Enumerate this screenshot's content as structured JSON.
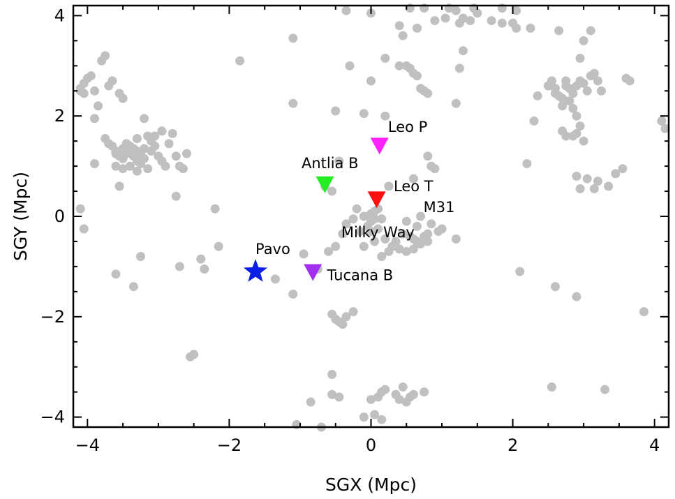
{
  "chart_data": {
    "type": "scatter",
    "title": "",
    "xlabel": "SGX (Mpc)",
    "ylabel": "SGY (Mpc)",
    "xlim": [
      -4.2,
      4.2
    ],
    "ylim": [
      -4.2,
      4.2
    ],
    "x_ticks": [
      -4,
      -2,
      0,
      2,
      4
    ],
    "y_ticks": [
      -4,
      -2,
      0,
      2,
      4
    ],
    "grid": false,
    "colors": {
      "background_points": "#c0c0c0",
      "pavo": "#0a1ee6",
      "antlia_b": "#22ee22",
      "leo_p": "#ff22ff",
      "leo_t": "#ff1010",
      "tucana_b": "#a030ee"
    },
    "background_points": [
      [
        -4.1,
        2.5
      ],
      [
        -4.05,
        2.65
      ],
      [
        -4.0,
        2.75
      ],
      [
        -3.95,
        2.8
      ],
      [
        -3.9,
        2.5
      ],
      [
        -3.85,
        2.2
      ],
      [
        -3.9,
        1.95
      ],
      [
        -3.8,
        3.1
      ],
      [
        -3.75,
        3.2
      ],
      [
        -3.55,
        2.45
      ],
      [
        -3.5,
        2.35
      ],
      [
        -3.7,
        2.6
      ],
      [
        -3.65,
        2.7
      ],
      [
        -4.1,
        2.55
      ],
      [
        -4.05,
        2.45
      ],
      [
        -3.9,
        1.05
      ],
      [
        -3.75,
        1.55
      ],
      [
        -3.7,
        1.45
      ],
      [
        -3.65,
        1.4
      ],
      [
        -3.6,
        1.3
      ],
      [
        -3.55,
        1.2
      ],
      [
        -3.5,
        1.35
      ],
      [
        -3.45,
        1.25
      ],
      [
        -3.4,
        1.3
      ],
      [
        -3.35,
        1.2
      ],
      [
        -3.3,
        1.1
      ],
      [
        -3.25,
        1.25
      ],
      [
        -3.2,
        1.35
      ],
      [
        -3.15,
        1.6
      ],
      [
        -3.1,
        1.5
      ],
      [
        -3.05,
        1.4
      ],
      [
        -3.0,
        1.2
      ],
      [
        -2.95,
        1.1
      ],
      [
        -2.9,
        1.0
      ],
      [
        -2.85,
        1.45
      ],
      [
        -2.8,
        1.65
      ],
      [
        -2.75,
        1.2
      ],
      [
        -2.7,
        1.0
      ],
      [
        -2.65,
        0.95
      ],
      [
        -3.6,
        1.0
      ],
      [
        -3.5,
        0.95
      ],
      [
        -3.4,
        1.0
      ],
      [
        -3.3,
        0.9
      ],
      [
        -3.2,
        1.95
      ],
      [
        -3.3,
        1.55
      ],
      [
        -3.45,
        1.45
      ],
      [
        -3.5,
        1.15
      ],
      [
        -3.6,
        1.25
      ],
      [
        -3.35,
        1.35
      ],
      [
        -3.25,
        1.05
      ],
      [
        -2.95,
        1.7
      ],
      [
        -3.05,
        1.6
      ],
      [
        -3.55,
        0.6
      ],
      [
        -2.75,
        0.4
      ],
      [
        -2.6,
        1.25
      ],
      [
        -3.4,
        1.4
      ],
      [
        -3.3,
        1.3
      ],
      [
        -3.2,
        1.15
      ],
      [
        -3.15,
        0.95
      ],
      [
        -3.1,
        1.3
      ],
      [
        -4.1,
        0.15
      ],
      [
        -4.05,
        -0.25
      ],
      [
        -1.85,
        3.1
      ],
      [
        -1.1,
        3.55
      ],
      [
        -1.1,
        2.25
      ],
      [
        -0.35,
        4.1
      ],
      [
        0.0,
        4.05
      ],
      [
        -0.1,
        2.05
      ],
      [
        -0.5,
        2.1
      ],
      [
        -0.3,
        3.0
      ],
      [
        0.0,
        2.7
      ],
      [
        0.2,
        3.15
      ],
      [
        0.4,
        3.8
      ],
      [
        0.45,
        3.6
      ],
      [
        0.65,
        3.75
      ],
      [
        0.75,
        4.15
      ],
      [
        0.9,
        3.9
      ],
      [
        1.05,
        3.95
      ],
      [
        1.1,
        4.15
      ],
      [
        0.4,
        3.0
      ],
      [
        0.5,
        3.0
      ],
      [
        0.55,
        2.95
      ],
      [
        0.6,
        2.85
      ],
      [
        0.65,
        2.8
      ],
      [
        0.7,
        2.55
      ],
      [
        0.75,
        2.5
      ],
      [
        0.8,
        2.45
      ],
      [
        1.2,
        2.25
      ],
      [
        1.25,
        2.95
      ],
      [
        1.3,
        3.3
      ],
      [
        1.25,
        3.85
      ],
      [
        1.3,
        3.95
      ],
      [
        1.4,
        3.9
      ],
      [
        1.5,
        4.05
      ],
      [
        1.7,
        3.9
      ],
      [
        1.85,
        3.85
      ],
      [
        2.0,
        3.85
      ],
      [
        2.05,
        3.75
      ],
      [
        2.05,
        4.1
      ],
      [
        2.25,
        3.75
      ],
      [
        1.85,
        4.15
      ],
      [
        1.2,
        4.1
      ],
      [
        1.45,
        4.15
      ],
      [
        0.55,
        4.15
      ],
      [
        0.2,
        2.0
      ],
      [
        2.35,
        2.4
      ],
      [
        2.5,
        2.6
      ],
      [
        2.55,
        2.7
      ],
      [
        2.6,
        2.55
      ],
      [
        2.65,
        2.4
      ],
      [
        2.7,
        2.2
      ],
      [
        2.75,
        2.6
      ],
      [
        2.8,
        2.55
      ],
      [
        2.85,
        2.45
      ],
      [
        2.9,
        2.6
      ],
      [
        2.95,
        2.7
      ],
      [
        3.0,
        2.65
      ],
      [
        3.05,
        2.5
      ],
      [
        3.1,
        2.8
      ],
      [
        3.15,
        2.85
      ],
      [
        3.2,
        2.7
      ],
      [
        3.25,
        2.5
      ],
      [
        2.7,
        2.35
      ],
      [
        2.8,
        2.3
      ],
      [
        2.85,
        2.15
      ],
      [
        2.9,
        2.0
      ],
      [
        2.95,
        1.8
      ],
      [
        2.9,
        1.65
      ],
      [
        2.85,
        1.6
      ],
      [
        2.75,
        1.6
      ],
      [
        2.7,
        1.7
      ],
      [
        3.0,
        1.5
      ],
      [
        2.95,
        3.15
      ],
      [
        3.0,
        3.5
      ],
      [
        3.1,
        3.7
      ],
      [
        2.65,
        3.7
      ],
      [
        3.6,
        2.75
      ],
      [
        3.65,
        2.7
      ],
      [
        2.3,
        1.9
      ],
      [
        2.2,
        1.05
      ],
      [
        2.6,
        2.45
      ],
      [
        2.75,
        2.7
      ],
      [
        4.1,
        1.9
      ],
      [
        4.15,
        1.75
      ],
      [
        2.9,
        0.8
      ],
      [
        3.05,
        0.75
      ],
      [
        3.2,
        0.7
      ],
      [
        3.35,
        0.6
      ],
      [
        3.45,
        0.85
      ],
      [
        3.55,
        0.95
      ],
      [
        3.15,
        0.55
      ],
      [
        2.95,
        0.55
      ],
      [
        -0.35,
        -0.15
      ],
      [
        -0.25,
        -0.05
      ],
      [
        -0.2,
        0.15
      ],
      [
        -0.1,
        0.0
      ],
      [
        0.0,
        0.05
      ],
      [
        0.05,
        0.1
      ],
      [
        0.1,
        0.15
      ],
      [
        0.15,
        -0.05
      ],
      [
        -0.05,
        -0.2
      ],
      [
        0.0,
        -0.3
      ],
      [
        0.1,
        -0.25
      ],
      [
        -0.15,
        -0.3
      ],
      [
        -0.4,
        -0.35
      ],
      [
        -0.5,
        -0.6
      ],
      [
        -0.6,
        -0.7
      ],
      [
        -0.1,
        -0.6
      ],
      [
        0.15,
        -0.8
      ],
      [
        0.25,
        -0.7
      ],
      [
        0.35,
        -0.5
      ],
      [
        0.45,
        -0.35
      ],
      [
        0.55,
        -0.4
      ],
      [
        0.6,
        -0.45
      ],
      [
        0.65,
        -0.5
      ],
      [
        0.7,
        -0.55
      ],
      [
        0.75,
        -0.4
      ],
      [
        0.8,
        -0.5
      ],
      [
        0.6,
        -0.65
      ],
      [
        0.5,
        -0.7
      ],
      [
        0.4,
        -0.65
      ],
      [
        0.3,
        -0.6
      ],
      [
        0.2,
        -0.45
      ],
      [
        0.05,
        -0.5
      ],
      [
        0.0,
        -0.1
      ],
      [
        0.05,
        -0.05
      ],
      [
        0.95,
        -0.3
      ],
      [
        1.0,
        -0.25
      ],
      [
        0.85,
        -0.15
      ],
      [
        1.2,
        -0.45
      ],
      [
        0.25,
        0.6
      ],
      [
        0.6,
        0.75
      ],
      [
        0.85,
        1.0
      ],
      [
        0.8,
        1.2
      ],
      [
        -0.45,
        1.1
      ],
      [
        -0.55,
        0.5
      ],
      [
        -0.65,
        0.6
      ],
      [
        0.65,
        -0.2
      ],
      [
        0.5,
        -0.1
      ],
      [
        0.7,
        0.0
      ],
      [
        0.8,
        -0.35
      ],
      [
        -2.7,
        -1.0
      ],
      [
        -3.6,
        -1.15
      ],
      [
        -3.35,
        -1.4
      ],
      [
        -3.25,
        -0.8
      ],
      [
        -2.4,
        -0.85
      ],
      [
        -2.35,
        -1.05
      ],
      [
        -2.15,
        -0.6
      ],
      [
        -1.35,
        -1.25
      ],
      [
        -1.1,
        -1.55
      ],
      [
        -0.95,
        -0.75
      ],
      [
        -0.75,
        -1.05
      ],
      [
        -0.55,
        -1.95
      ],
      [
        -0.5,
        -2.05
      ],
      [
        -0.45,
        -2.1
      ],
      [
        -0.4,
        -2.15
      ],
      [
        -0.35,
        -2.0
      ],
      [
        -0.25,
        -1.9
      ],
      [
        -0.55,
        -3.15
      ],
      [
        -0.55,
        -3.55
      ],
      [
        -0.45,
        -3.6
      ],
      [
        -0.85,
        -3.7
      ],
      [
        -0.1,
        -4.0
      ],
      [
        0.0,
        -3.65
      ],
      [
        0.1,
        -3.6
      ],
      [
        0.15,
        -3.5
      ],
      [
        0.2,
        -3.45
      ],
      [
        0.35,
        -3.55
      ],
      [
        0.4,
        -3.65
      ],
      [
        0.5,
        -3.7
      ],
      [
        0.55,
        -3.6
      ],
      [
        0.6,
        -3.55
      ],
      [
        0.75,
        -3.5
      ],
      [
        0.45,
        -3.4
      ],
      [
        0.15,
        -4.05
      ],
      [
        0.05,
        -3.95
      ],
      [
        -2.55,
        -2.8
      ],
      [
        -2.5,
        -2.75
      ],
      [
        -1.05,
        -4.15
      ],
      [
        -0.7,
        -4.2
      ],
      [
        2.1,
        -1.1
      ],
      [
        2.6,
        -1.4
      ],
      [
        2.9,
        -1.6
      ],
      [
        3.85,
        -1.9
      ],
      [
        2.55,
        -3.4
      ],
      [
        3.3,
        -3.45
      ],
      [
        -2.2,
        0.15
      ],
      [
        0.9,
        0.95
      ]
    ],
    "highlights": [
      {
        "name": "Pavo",
        "x": -1.63,
        "y": -1.1,
        "marker": "star",
        "color_key": "pavo"
      },
      {
        "name": "Antlia B",
        "x": -0.65,
        "y": 0.63,
        "marker": "triangle-down",
        "color_key": "antlia_b"
      },
      {
        "name": "Leo P",
        "x": 0.12,
        "y": 1.4,
        "marker": "triangle-down",
        "color_key": "leo_p"
      },
      {
        "name": "Leo T",
        "x": 0.08,
        "y": 0.33,
        "marker": "triangle-down",
        "color_key": "leo_t"
      },
      {
        "name": "Tucana B",
        "x": -0.82,
        "y": -1.12,
        "marker": "triangle-down",
        "color_key": "tucana_b"
      }
    ],
    "annotations": [
      {
        "text": "Pavo",
        "x": -1.63,
        "y": -0.75
      },
      {
        "text": "Antlia B",
        "x": -0.98,
        "y": 0.96
      },
      {
        "text": "Leo P",
        "x": 0.24,
        "y": 1.68
      },
      {
        "text": "Leo T",
        "x": 0.32,
        "y": 0.5
      },
      {
        "text": "M31",
        "x": 0.74,
        "y": 0.08
      },
      {
        "text": "Milky Way",
        "x": -0.42,
        "y": -0.42
      },
      {
        "text": "Tucana B",
        "x": -0.62,
        "y": -1.27
      }
    ]
  }
}
